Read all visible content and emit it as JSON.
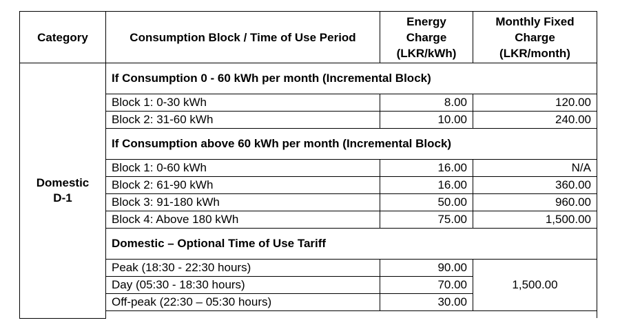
{
  "table": {
    "headers": {
      "category": "Category",
      "block": "Consumption Block / Time of Use Period",
      "energy": [
        "Energy",
        "Charge",
        "(LKR/kWh)"
      ],
      "fixed": [
        "Monthly Fixed",
        "Charge",
        "(LKR/month)"
      ]
    },
    "category": [
      "Domestic",
      "D-1"
    ],
    "sections": [
      {
        "title": "If Consumption 0 - 60 kWh per month (Incremental Block)",
        "rows": [
          {
            "block": "Block 1: 0-30 kWh",
            "energy": "8.00",
            "fixed": "120.00"
          },
          {
            "block": "Block 2: 31-60 kWh",
            "energy": "10.00",
            "fixed": "240.00"
          }
        ]
      },
      {
        "title": "If Consumption above 60 kWh per month (Incremental Block)",
        "rows": [
          {
            "block": "Block 1: 0-60 kWh",
            "energy": "16.00",
            "fixed": "N/A"
          },
          {
            "block": "Block 2: 61-90 kWh",
            "energy": "16.00",
            "fixed": "360.00"
          },
          {
            "block": "Block 3: 91-180 kWh",
            "energy": "50.00",
            "fixed": "960.00"
          },
          {
            "block": "Block 4: Above 180 kWh",
            "energy": "75.00",
            "fixed": "1,500.00"
          }
        ]
      },
      {
        "title": "Domestic – Optional Time of Use Tariff",
        "rows": [
          {
            "block": "Peak (18:30 - 22:30 hours)",
            "energy": "90.00"
          },
          {
            "block": "Day (05:30 - 18:30 hours)",
            "energy": "70.00"
          },
          {
            "block": "Off-peak (22:30 – 05:30 hours)",
            "energy": "30.00"
          }
        ],
        "fixed_shared": "1,500.00"
      }
    ]
  }
}
